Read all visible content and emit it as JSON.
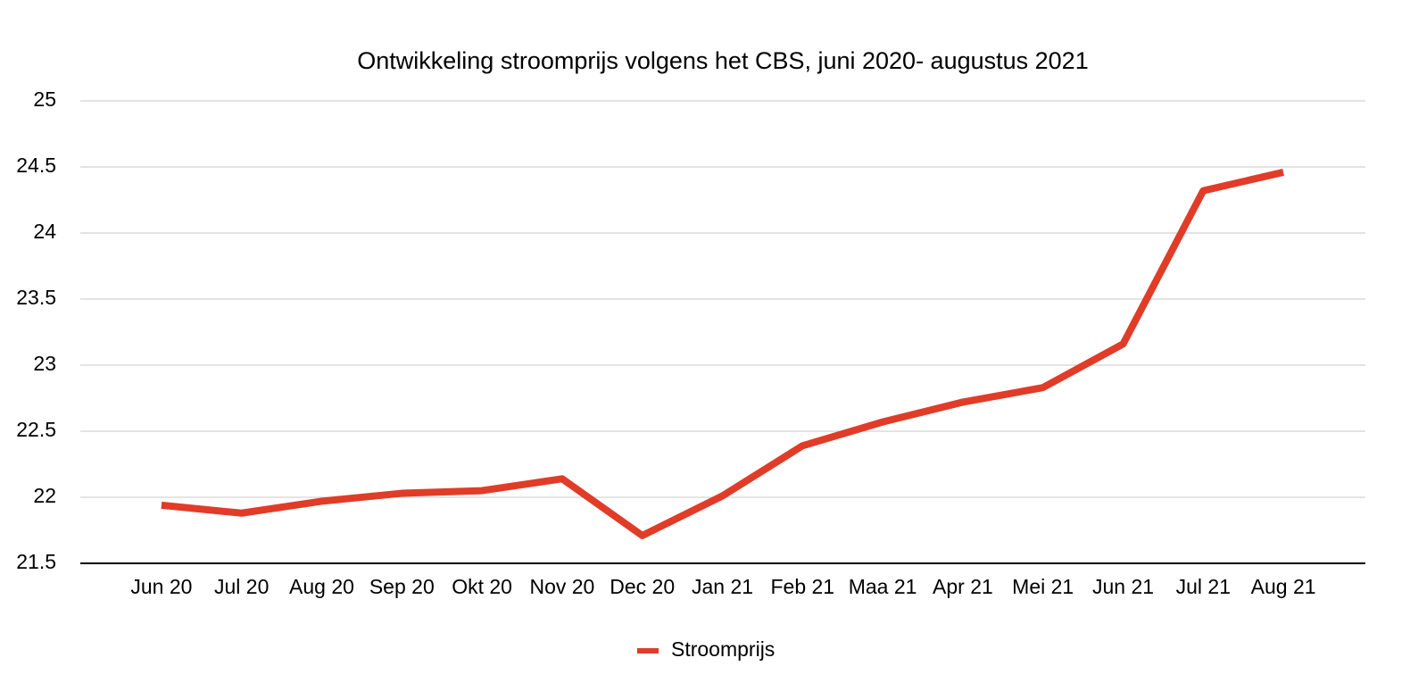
{
  "chart_data": {
    "type": "line",
    "title": "Ontwikkeling stroomprijs volgens het CBS, juni 2020- augustus 2021",
    "categories": [
      "Jun 20",
      "Jul 20",
      "Aug 20",
      "Sep 20",
      "Okt 20",
      "Nov 20",
      "Dec 20",
      "Jan 21",
      "Feb 21",
      "Maa 21",
      "Apr 21",
      "Mei 21",
      "Jun 21",
      "Jul 21",
      "Aug 21"
    ],
    "series": [
      {
        "name": "Stroomprijs",
        "color": "#e03c28",
        "values": [
          21.94,
          21.88,
          21.97,
          22.03,
          22.05,
          22.14,
          21.71,
          22.01,
          22.39,
          22.57,
          22.72,
          22.83,
          23.16,
          24.32,
          24.46
        ]
      }
    ],
    "ylim": [
      21.5,
      25
    ],
    "yticks": [
      21.5,
      22,
      22.5,
      23,
      23.5,
      24,
      24.5,
      25
    ],
    "grid": true,
    "legend": "bottom"
  }
}
